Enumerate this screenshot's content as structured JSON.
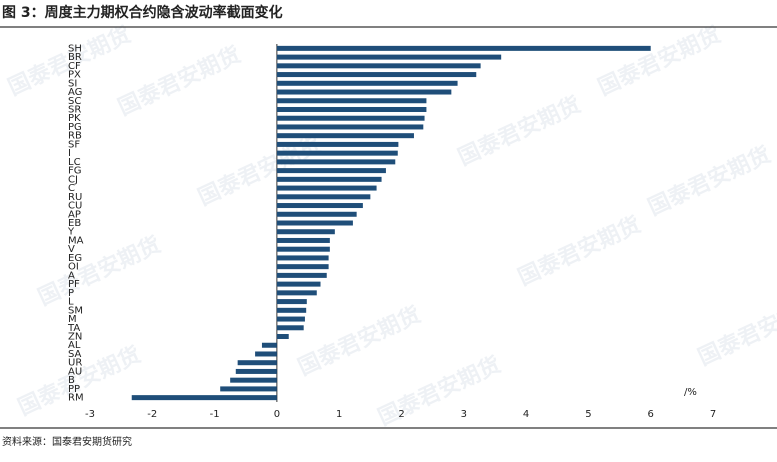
{
  "chart_data": {
    "type": "bar",
    "orientation": "horizontal",
    "title": "图 3：周度主力期权合约隐含波动率截面变化",
    "source": "资料来源：国泰君安期货研究",
    "x_unit": "/%",
    "watermark": "国泰君安期货",
    "color": "#1f4e79",
    "categories": [
      "SH",
      "BR",
      "CF",
      "PX",
      "SI",
      "AG",
      "SC",
      "SR",
      "PK",
      "PG",
      "RB",
      "SF",
      "I",
      "LC",
      "FG",
      "CJ",
      "C",
      "RU",
      "CU",
      "AP",
      "EB",
      "Y",
      "MA",
      "V",
      "EG",
      "OI",
      "A",
      "PF",
      "P",
      "L",
      "SM",
      "M",
      "TA",
      "ZN",
      "AL",
      "SA",
      "UR",
      "AU",
      "B",
      "PP",
      "RM"
    ],
    "values": [
      6.0,
      3.6,
      3.27,
      3.2,
      2.9,
      2.8,
      2.4,
      2.4,
      2.37,
      2.35,
      2.2,
      1.95,
      1.94,
      1.9,
      1.75,
      1.68,
      1.6,
      1.5,
      1.38,
      1.28,
      1.22,
      0.93,
      0.85,
      0.85,
      0.83,
      0.83,
      0.8,
      0.7,
      0.64,
      0.48,
      0.47,
      0.45,
      0.43,
      0.19,
      -0.24,
      -0.35,
      -0.63,
      -0.66,
      -0.75,
      -0.91,
      -2.33
    ],
    "xlim": [
      -3,
      7
    ],
    "xticks": [
      -3,
      -2,
      -1,
      0,
      1,
      2,
      3,
      4,
      5,
      6,
      7
    ]
  }
}
